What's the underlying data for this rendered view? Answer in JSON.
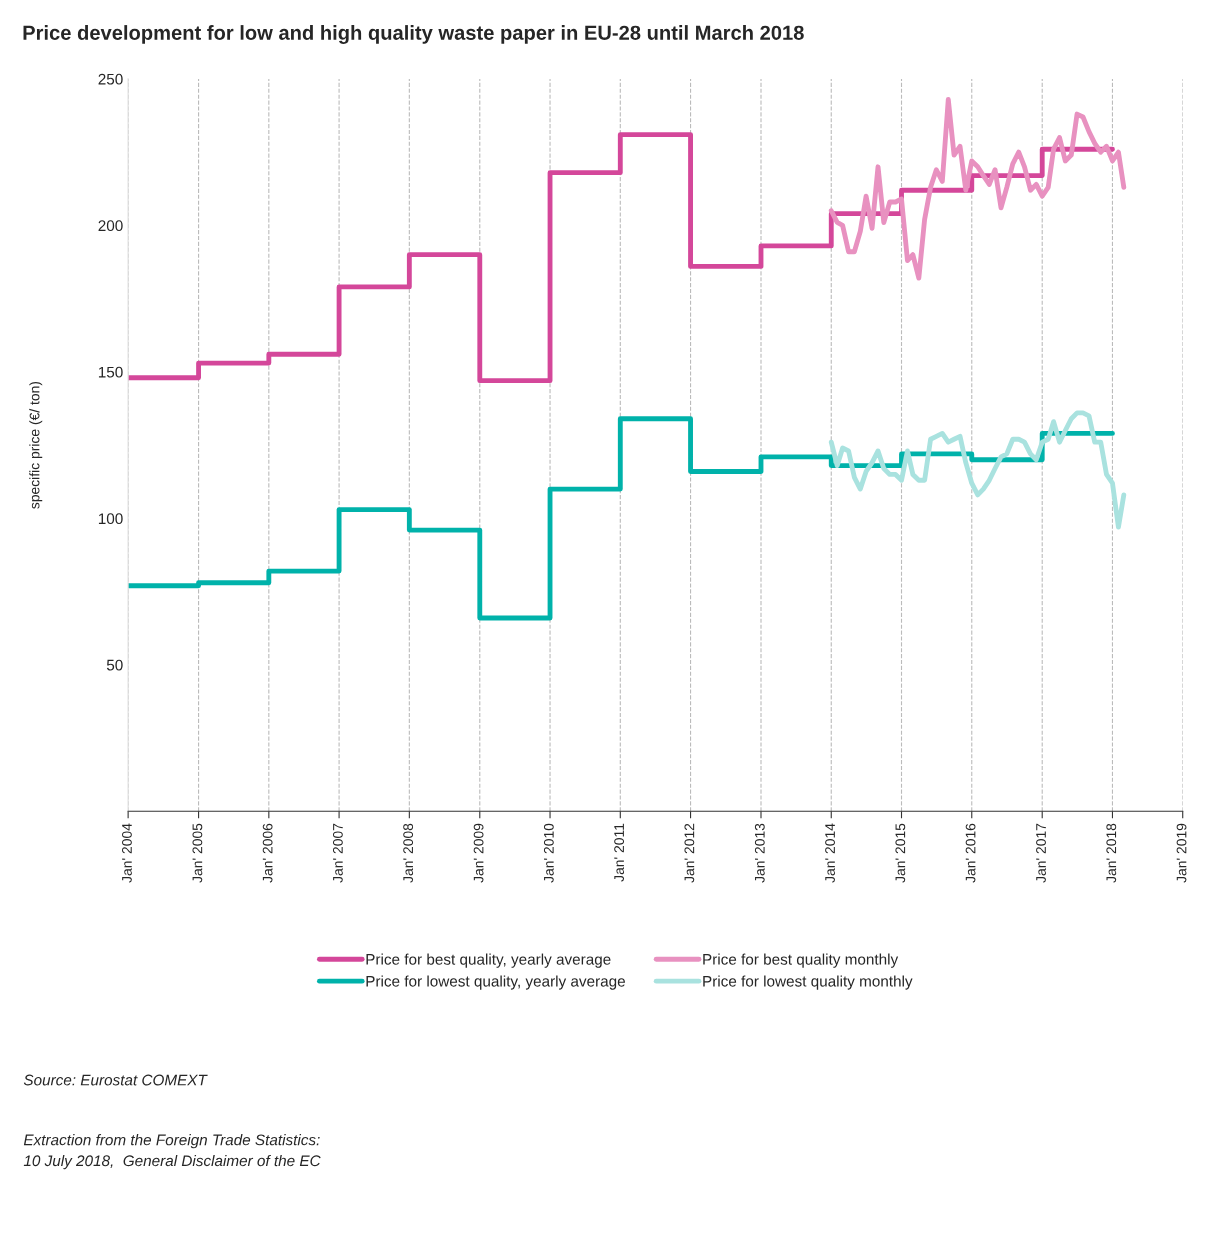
{
  "chart_data": {
    "type": "line",
    "title": "Price development for low and high quality waste paper in EU-28 until March 2018",
    "ylabel": "specific price (€/ ton)",
    "xlim": [
      "2004-01",
      "2019-01"
    ],
    "xticks": [
      {
        "value": "2004-01",
        "label": "Jan' 2004"
      },
      {
        "value": "2005-01",
        "label": "Jan' 2005"
      },
      {
        "value": "2006-01",
        "label": "Jan' 2006"
      },
      {
        "value": "2007-01",
        "label": "Jan' 2007"
      },
      {
        "value": "2008-01",
        "label": "Jan' 2008"
      },
      {
        "value": "2009-01",
        "label": "Jan' 2009"
      },
      {
        "value": "2010-01",
        "label": "Jan' 2010"
      },
      {
        "value": "2011-01",
        "label": "Jan' 2011"
      },
      {
        "value": "2012-01",
        "label": "Jan' 2012"
      },
      {
        "value": "2013-01",
        "label": "Jan' 2013"
      },
      {
        "value": "2014-01",
        "label": "Jan' 2014"
      },
      {
        "value": "2015-01",
        "label": "Jan' 2015"
      },
      {
        "value": "2016-01",
        "label": "Jan' 2016"
      },
      {
        "value": "2017-01",
        "label": "Jan' 2017"
      },
      {
        "value": "2018-01",
        "label": "Jan' 2018"
      },
      {
        "value": "2019-01",
        "label": "Jan' 2019"
      }
    ],
    "ylim": [
      0,
      250
    ],
    "yticks": [
      50,
      100,
      150,
      200,
      250
    ],
    "grid": "x",
    "legend": "bottom",
    "line_style": "solid",
    "marker": "none",
    "series": [
      {
        "name": "Price for best quality, yearly average",
        "type": "step",
        "color": "#d4479a",
        "x": [
          "2004-01",
          "2005-01",
          "2006-01",
          "2007-01",
          "2008-01",
          "2009-01",
          "2010-01",
          "2011-01",
          "2012-01",
          "2013-01",
          "2014-01",
          "2015-01",
          "2016-01",
          "2017-01",
          "2018-01"
        ],
        "values": [
          148,
          153,
          156,
          179,
          190,
          147,
          218,
          231,
          186,
          193,
          204,
          212,
          217,
          226,
          226
        ]
      },
      {
        "name": "Price for best quality monthly",
        "color": "#e891c0",
        "x": [
          "2014-01",
          "2014-02",
          "2014-03",
          "2014-04",
          "2014-05",
          "2014-06",
          "2014-07",
          "2014-08",
          "2014-09",
          "2014-10",
          "2014-11",
          "2014-12",
          "2015-01",
          "2015-02",
          "2015-03",
          "2015-04",
          "2015-05",
          "2015-06",
          "2015-07",
          "2015-08",
          "2015-09",
          "2015-10",
          "2015-11",
          "2015-12",
          "2016-01",
          "2016-02",
          "2016-03",
          "2016-04",
          "2016-05",
          "2016-06",
          "2016-07",
          "2016-08",
          "2016-09",
          "2016-10",
          "2016-11",
          "2016-12",
          "2017-01",
          "2017-02",
          "2017-03",
          "2017-04",
          "2017-05",
          "2017-06",
          "2017-07",
          "2017-08",
          "2017-09",
          "2017-10",
          "2017-11",
          "2017-12",
          "2018-01",
          "2018-02",
          "2018-03"
        ],
        "values": [
          205,
          201,
          200,
          191,
          191,
          198,
          210,
          199,
          220,
          201,
          208,
          208,
          209,
          188,
          190,
          182,
          202,
          213,
          219,
          215,
          243,
          224,
          227,
          212,
          222,
          220,
          217,
          214,
          219,
          206,
          213,
          221,
          225,
          220,
          212,
          214,
          210,
          213,
          226,
          230,
          222,
          224,
          238,
          237,
          232,
          228,
          225,
          227,
          222,
          225,
          213
        ]
      },
      {
        "name": "Price for lowest quality, yearly average",
        "type": "step",
        "color": "#00b2aa",
        "x": [
          "2004-01",
          "2005-01",
          "2006-01",
          "2007-01",
          "2008-01",
          "2009-01",
          "2010-01",
          "2011-01",
          "2012-01",
          "2013-01",
          "2014-01",
          "2015-01",
          "2016-01",
          "2017-01",
          "2018-01"
        ],
        "values": [
          77,
          78,
          82,
          103,
          96,
          66,
          110,
          134,
          116,
          121,
          118,
          122,
          120,
          129,
          129
        ]
      },
      {
        "name": "Price for lowest quality monthly",
        "color": "#a9e2df",
        "x": [
          "2014-01",
          "2014-02",
          "2014-03",
          "2014-04",
          "2014-05",
          "2014-06",
          "2014-07",
          "2014-08",
          "2014-09",
          "2014-10",
          "2014-11",
          "2014-12",
          "2015-01",
          "2015-02",
          "2015-03",
          "2015-04",
          "2015-05",
          "2015-06",
          "2015-07",
          "2015-08",
          "2015-09",
          "2015-10",
          "2015-11",
          "2015-12",
          "2016-01",
          "2016-02",
          "2016-03",
          "2016-04",
          "2016-05",
          "2016-06",
          "2016-07",
          "2016-08",
          "2016-09",
          "2016-10",
          "2016-11",
          "2016-12",
          "2017-01",
          "2017-02",
          "2017-03",
          "2017-04",
          "2017-05",
          "2017-06",
          "2017-07",
          "2017-08",
          "2017-09",
          "2017-10",
          "2017-11",
          "2017-12",
          "2018-01",
          "2018-02",
          "2018-03"
        ],
        "values": [
          126,
          118,
          124,
          123,
          114,
          110,
          116,
          119,
          123,
          117,
          115,
          115,
          113,
          123,
          115,
          113,
          113,
          127,
          128,
          129,
          126,
          127,
          128,
          119,
          112,
          108,
          110,
          113,
          117,
          121,
          122,
          127,
          127,
          126,
          122,
          120,
          126,
          127,
          133,
          126,
          130,
          134,
          136,
          136,
          135,
          126,
          126,
          115,
          112,
          97,
          108
        ]
      }
    ],
    "annotations": [
      "Source: Eurostat COMEXT",
      "Extraction from the Foreign Trade Statistics:\n10 July 2018,  General Disclaimer of the EC"
    ]
  }
}
